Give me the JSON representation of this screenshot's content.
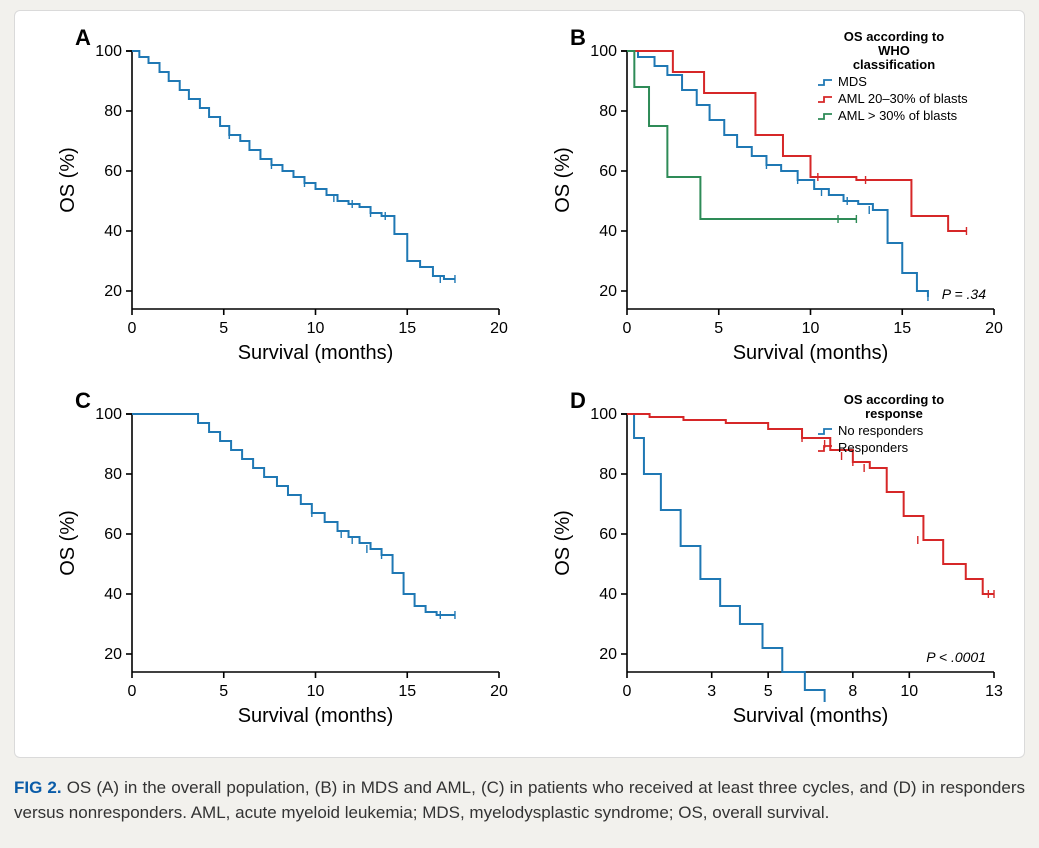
{
  "figure": {
    "label": "FIG 2.",
    "caption_rest": " OS (A) in the overall population, (B) in MDS and AML, (C) in patients who received at least three cycles, and (D) in responders versus nonresponders. AML, acute myeloid leukemia; MDS, myelodysplastic syndrome; OS, overall survival."
  },
  "style": {
    "axis_color": "#000000",
    "axis_stroke_width": 1.6,
    "tick_len": 6,
    "series_stroke_width": 2.0,
    "tick_mark_stroke_width": 1.4,
    "panel_letter_fontsize": 22,
    "panel_letter_weight": "bold",
    "axis_label_fontsize": 20,
    "tick_label_fontsize": 16,
    "legend_title_fontsize": 13,
    "legend_item_fontsize": 13,
    "pvalue_fontsize": 14,
    "background_color": "#ffffff"
  },
  "panels": {
    "A": {
      "letter": "A",
      "xlabel": "Survival (months)",
      "ylabel": "OS (%)",
      "xlim": [
        0,
        20
      ],
      "ylim": [
        0,
        100
      ],
      "xticks": [
        0,
        5,
        10,
        15,
        20
      ],
      "yticks": [
        20,
        40,
        60,
        80,
        100
      ],
      "y_axis_start": 14,
      "series": [
        {
          "name": "Overall",
          "color": "#1f78b4",
          "points": [
            [
              0,
              100
            ],
            [
              0.4,
              98
            ],
            [
              0.9,
              96
            ],
            [
              1.5,
              93
            ],
            [
              2.0,
              90
            ],
            [
              2.6,
              87
            ],
            [
              3.1,
              84
            ],
            [
              3.7,
              81
            ],
            [
              4.2,
              78
            ],
            [
              4.8,
              75
            ],
            [
              5.3,
              72
            ],
            [
              5.9,
              70
            ],
            [
              6.4,
              67
            ],
            [
              7.0,
              64
            ],
            [
              7.6,
              62
            ],
            [
              8.2,
              60
            ],
            [
              8.8,
              58
            ],
            [
              9.4,
              56
            ],
            [
              10.0,
              54
            ],
            [
              10.6,
              52
            ],
            [
              11.2,
              50
            ],
            [
              11.8,
              49
            ],
            [
              12.4,
              48
            ],
            [
              13.0,
              46
            ],
            [
              13.6,
              45
            ],
            [
              14.3,
              39
            ],
            [
              15.0,
              30
            ],
            [
              15.7,
              28
            ],
            [
              16.4,
              25
            ],
            [
              17.0,
              24
            ],
            [
              17.6,
              24
            ]
          ],
          "ticks": [
            [
              5.3,
              72
            ],
            [
              7.6,
              62
            ],
            [
              9.4,
              56
            ],
            [
              11.0,
              51
            ],
            [
              12.0,
              49
            ],
            [
              13.0,
              46
            ],
            [
              13.8,
              45
            ],
            [
              16.8,
              24
            ],
            [
              17.6,
              24
            ]
          ]
        }
      ]
    },
    "B": {
      "letter": "B",
      "xlabel": "Survival (months)",
      "ylabel": "OS (%)",
      "xlim": [
        0,
        20
      ],
      "ylim": [
        0,
        100
      ],
      "xticks": [
        0,
        5,
        10,
        15,
        20
      ],
      "yticks": [
        20,
        40,
        60,
        80,
        100
      ],
      "y_axis_start": 14,
      "pvalue": "P = .34",
      "legend": {
        "title": "OS according to\nWHO\nclassification",
        "items": [
          {
            "label": "MDS",
            "color": "#1f78b4"
          },
          {
            "label": "AML 20–30% of blasts",
            "color": "#d62728"
          },
          {
            "label": "AML > 30% of blasts",
            "color": "#2e8b57"
          }
        ]
      },
      "series": [
        {
          "name": "MDS",
          "color": "#1f78b4",
          "points": [
            [
              0,
              100
            ],
            [
              0.6,
              98
            ],
            [
              1.5,
              95
            ],
            [
              2.2,
              92
            ],
            [
              3.0,
              87
            ],
            [
              3.8,
              82
            ],
            [
              4.5,
              77
            ],
            [
              5.3,
              72
            ],
            [
              6.0,
              68
            ],
            [
              6.8,
              65
            ],
            [
              7.6,
              62
            ],
            [
              8.4,
              60
            ],
            [
              9.3,
              57
            ],
            [
              10.2,
              54
            ],
            [
              11.0,
              52
            ],
            [
              11.8,
              50
            ],
            [
              12.6,
              49
            ],
            [
              13.4,
              47
            ],
            [
              14.2,
              36
            ],
            [
              15.0,
              26
            ],
            [
              15.8,
              20
            ],
            [
              16.4,
              18
            ]
          ],
          "ticks": [
            [
              7.6,
              62
            ],
            [
              9.3,
              57
            ],
            [
              10.6,
              53
            ],
            [
              12.0,
              50
            ],
            [
              13.2,
              47
            ],
            [
              16.4,
              18
            ]
          ]
        },
        {
          "name": "AML20-30",
          "color": "#d62728",
          "points": [
            [
              0,
              100
            ],
            [
              1.8,
              100
            ],
            [
              2.5,
              93
            ],
            [
              4.2,
              86
            ],
            [
              6.0,
              86
            ],
            [
              7.0,
              72
            ],
            [
              8.5,
              65
            ],
            [
              10.0,
              58
            ],
            [
              12.5,
              57
            ],
            [
              14.0,
              57
            ],
            [
              15.5,
              45
            ],
            [
              17.5,
              40
            ],
            [
              18.5,
              40
            ]
          ],
          "ticks": [
            [
              10.4,
              58
            ],
            [
              13.0,
              57
            ],
            [
              18.5,
              40
            ]
          ]
        },
        {
          "name": "AML>30",
          "color": "#2e8b57",
          "points": [
            [
              0,
              100
            ],
            [
              0.4,
              88
            ],
            [
              1.2,
              75
            ],
            [
              2.2,
              58
            ],
            [
              4.0,
              44
            ],
            [
              10.5,
              44
            ],
            [
              12.5,
              44
            ]
          ],
          "ticks": [
            [
              11.5,
              44
            ],
            [
              12.5,
              44
            ]
          ]
        }
      ]
    },
    "C": {
      "letter": "C",
      "xlabel": "Survival (months)",
      "ylabel": "OS (%)",
      "xlim": [
        0,
        20
      ],
      "ylim": [
        0,
        100
      ],
      "xticks": [
        0,
        5,
        10,
        15,
        20
      ],
      "yticks": [
        20,
        40,
        60,
        80,
        100
      ],
      "y_axis_start": 14,
      "series": [
        {
          "name": ">=3 cycles",
          "color": "#1f78b4",
          "points": [
            [
              0,
              100
            ],
            [
              3.0,
              100
            ],
            [
              3.6,
              97
            ],
            [
              4.2,
              94
            ],
            [
              4.8,
              91
            ],
            [
              5.4,
              88
            ],
            [
              6.0,
              85
            ],
            [
              6.6,
              82
            ],
            [
              7.2,
              79
            ],
            [
              7.9,
              76
            ],
            [
              8.5,
              73
            ],
            [
              9.2,
              70
            ],
            [
              9.8,
              67
            ],
            [
              10.5,
              64
            ],
            [
              11.2,
              61
            ],
            [
              11.8,
              59
            ],
            [
              12.4,
              57
            ],
            [
              13.0,
              55
            ],
            [
              13.6,
              53
            ],
            [
              14.2,
              47
            ],
            [
              14.8,
              40
            ],
            [
              15.4,
              36
            ],
            [
              16.0,
              34
            ],
            [
              16.6,
              33
            ],
            [
              17.2,
              33
            ],
            [
              17.6,
              33
            ]
          ],
          "ticks": [
            [
              9.8,
              67
            ],
            [
              11.4,
              60
            ],
            [
              12.0,
              58
            ],
            [
              12.8,
              55
            ],
            [
              13.6,
              53
            ],
            [
              16.8,
              33
            ],
            [
              17.6,
              33
            ]
          ]
        }
      ]
    },
    "D": {
      "letter": "D",
      "xlabel": "Survival (months)",
      "ylabel": "OS (%)",
      "xlim": [
        0,
        13
      ],
      "ylim": [
        0,
        100
      ],
      "xticks": [
        0,
        3,
        5,
        8,
        10,
        13
      ],
      "yticks": [
        20,
        40,
        60,
        80,
        100
      ],
      "y_axis_start": 14,
      "pvalue": "P < .0001",
      "legend": {
        "title": "OS according to\nresponse",
        "items": [
          {
            "label": "No responders",
            "color": "#1f78b4"
          },
          {
            "label": "Responders",
            "color": "#d62728"
          }
        ]
      },
      "series": [
        {
          "name": "No responders",
          "color": "#1f78b4",
          "points": [
            [
              0,
              100
            ],
            [
              0.25,
              92
            ],
            [
              0.6,
              80
            ],
            [
              1.2,
              68
            ],
            [
              1.9,
              56
            ],
            [
              2.6,
              45
            ],
            [
              3.3,
              36
            ],
            [
              4.0,
              30
            ],
            [
              4.8,
              22
            ],
            [
              5.5,
              14
            ],
            [
              6.3,
              8
            ],
            [
              7.0,
              4
            ]
          ],
          "ticks": []
        },
        {
          "name": "Responders",
          "color": "#d62728",
          "points": [
            [
              0,
              100
            ],
            [
              0.8,
              99
            ],
            [
              2.0,
              98
            ],
            [
              3.5,
              97
            ],
            [
              5.0,
              95
            ],
            [
              6.2,
              92
            ],
            [
              7.2,
              88
            ],
            [
              8.0,
              84
            ],
            [
              8.6,
              82
            ],
            [
              9.2,
              74
            ],
            [
              9.8,
              66
            ],
            [
              10.5,
              58
            ],
            [
              11.2,
              50
            ],
            [
              12.0,
              45
            ],
            [
              12.6,
              40
            ],
            [
              13.0,
              40
            ]
          ],
          "ticks": [
            [
              6.2,
              92
            ],
            [
              7.0,
              90
            ],
            [
              7.6,
              86
            ],
            [
              8.0,
              84
            ],
            [
              8.4,
              82
            ],
            [
              10.3,
              58
            ],
            [
              12.8,
              40
            ],
            [
              13.0,
              40
            ]
          ]
        }
      ]
    }
  }
}
